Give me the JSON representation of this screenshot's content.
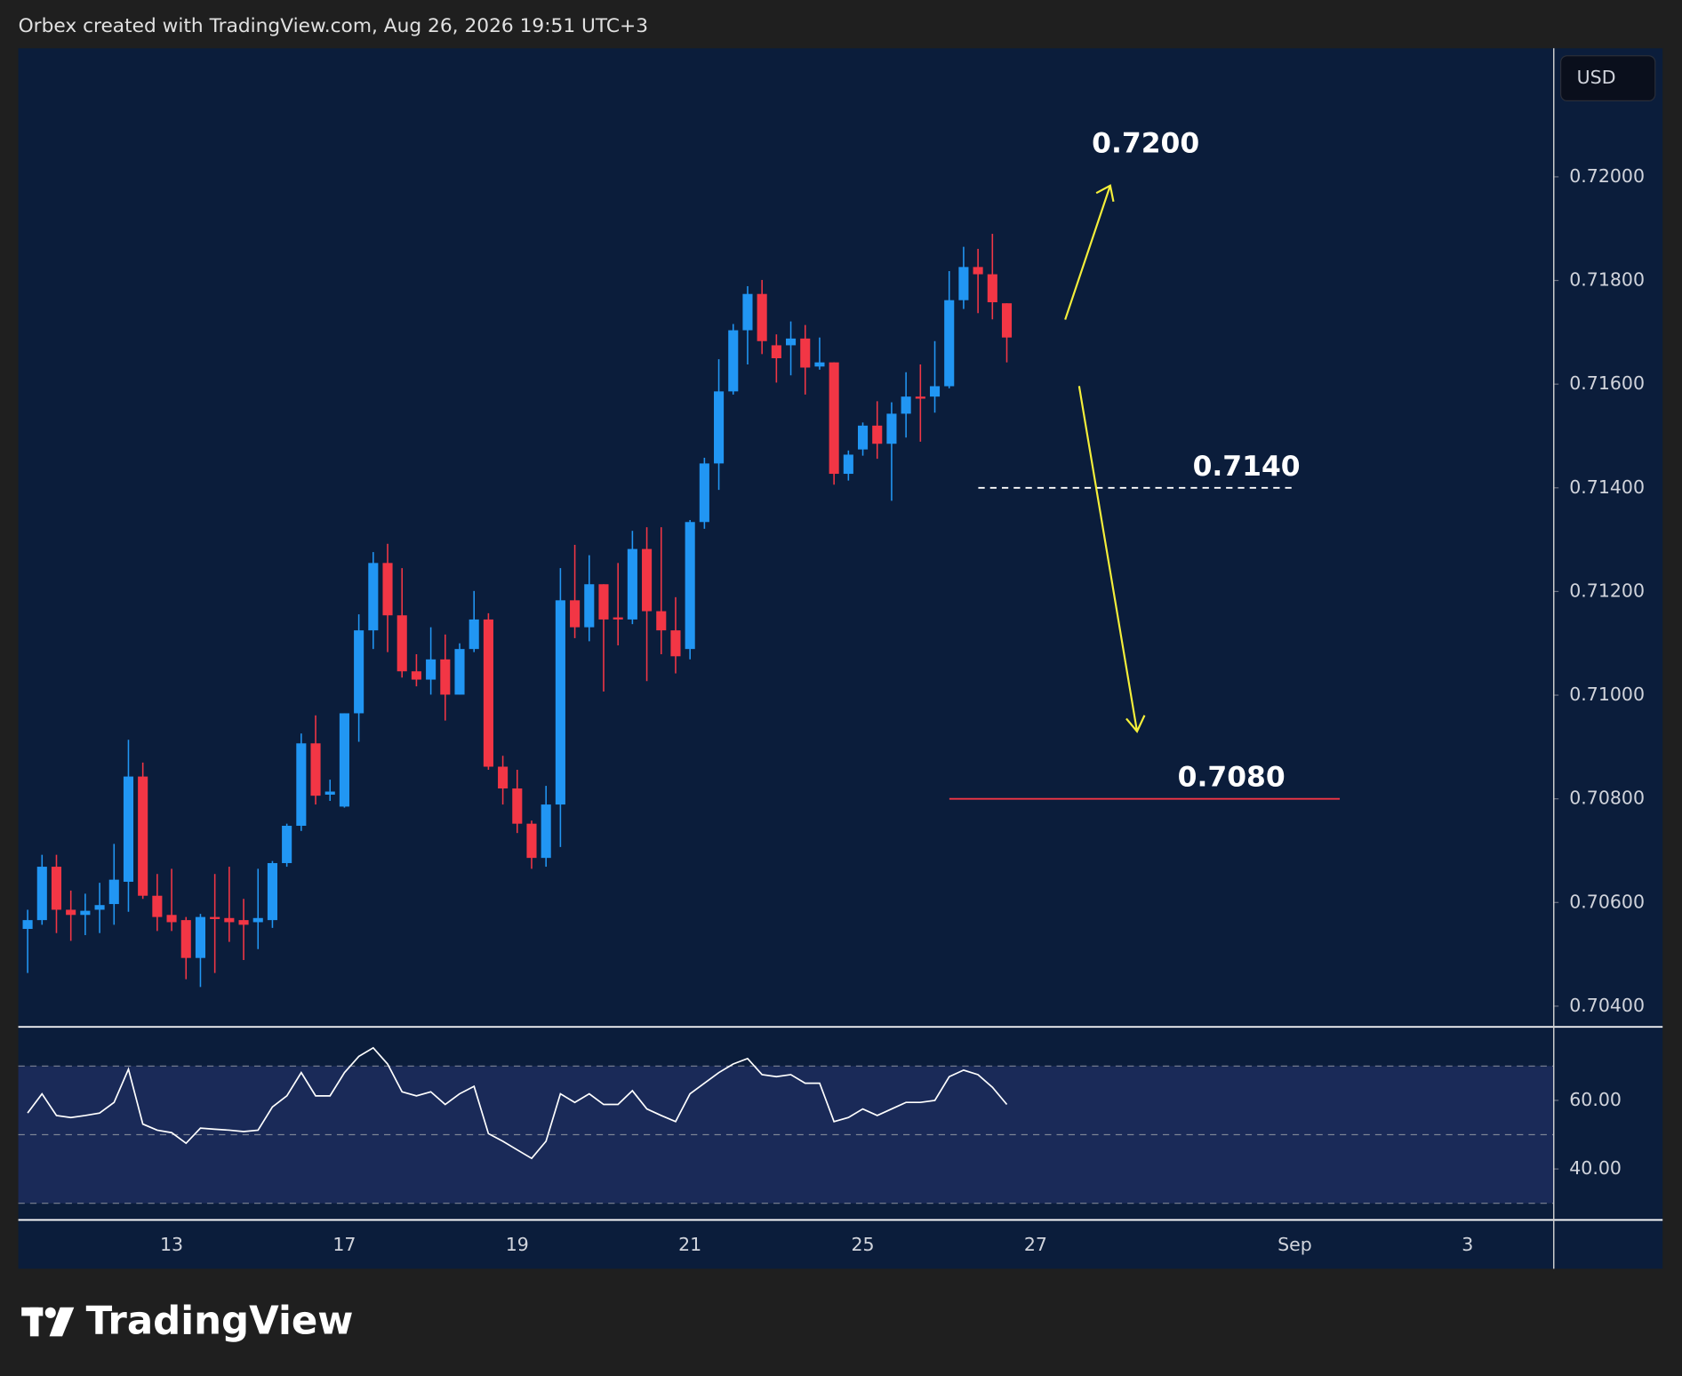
{
  "header": "Orbex created with TradingView.com, Aug 26, 2026 19:51 UTC+3",
  "currency": "USD",
  "brand": "TradingView",
  "chart_data": [
    {
      "type": "candlestick",
      "categories": [
        null,
        null,
        null,
        null,
        null,
        null,
        null,
        null,
        null,
        null,
        "13",
        null,
        null,
        null,
        null,
        null,
        null,
        null,
        null,
        null,
        null,
        null,
        "17",
        null,
        null,
        null,
        null,
        null,
        null,
        null,
        null,
        null,
        null,
        null,
        "19",
        null,
        null,
        null,
        null,
        null,
        null,
        null,
        null,
        null,
        null,
        null,
        "21",
        null,
        null,
        null,
        null,
        null,
        null,
        null,
        null,
        null,
        null,
        null,
        "25",
        null,
        null,
        null,
        null,
        null,
        null,
        null,
        null,
        null,
        null,
        null,
        "27",
        null,
        null,
        null,
        null,
        null,
        null,
        null,
        null,
        null,
        null,
        null,
        null,
        null,
        null,
        null,
        null,
        null,
        "Sep",
        null,
        null,
        null,
        null,
        null,
        null,
        null,
        null,
        null,
        null,
        null,
        "3",
        null,
        null,
        null,
        null,
        null
      ],
      "open": [
        0.70549,
        0.70566,
        0.70669,
        0.70586,
        0.70576,
        0.70586,
        0.70597,
        0.7064,
        0.70843,
        0.70613,
        0.70576,
        0.70566,
        0.70493,
        0.70572,
        0.7057,
        0.70566,
        0.70562,
        0.70566,
        0.70676,
        0.70748,
        0.70907,
        0.70808,
        0.70785,
        0.70965,
        0.71125,
        0.71255,
        0.71154,
        0.71046,
        0.7103,
        0.71069,
        0.71001,
        0.71089,
        0.71146,
        0.70862,
        0.7082,
        0.70752,
        0.70686,
        0.70789,
        0.71183,
        0.71131,
        0.71214,
        0.7115,
        0.71146,
        0.71282,
        0.71162,
        0.71125,
        0.71089,
        0.71334,
        0.71447,
        0.71586,
        0.71704,
        0.71774,
        0.71675,
        0.71675,
        0.71688,
        0.71634,
        0.71642,
        0.71427,
        0.71474,
        0.7152,
        0.71485,
        0.71543,
        0.71576,
        0.71576,
        0.71596,
        0.71762,
        0.71826,
        0.71812,
        0.71756,
        null,
        null,
        null,
        null,
        null,
        null,
        null,
        null,
        null,
        null,
        null,
        null,
        null,
        null,
        null,
        null,
        null,
        null,
        null,
        null,
        null,
        null,
        null,
        null,
        null,
        null,
        null,
        null,
        null,
        null,
        null,
        null,
        null,
        null,
        null,
        null,
        null
      ],
      "high": [
        0.70586,
        0.70692,
        0.70692,
        0.70623,
        0.70617,
        0.70638,
        0.70713,
        0.70914,
        0.7087,
        0.70655,
        0.70665,
        0.70572,
        0.70578,
        0.70655,
        0.70669,
        0.70607,
        0.70665,
        0.7068,
        0.70752,
        0.70926,
        0.70961,
        0.70837,
        0.70965,
        0.71156,
        0.71276,
        0.71292,
        0.71245,
        0.71079,
        0.71131,
        0.71117,
        0.711,
        0.71201,
        0.71158,
        0.70883,
        0.70856,
        0.70758,
        0.70825,
        0.71245,
        0.7129,
        0.7127,
        0.71214,
        0.71255,
        0.71317,
        0.71324,
        0.71324,
        0.71189,
        0.71338,
        0.71458,
        0.71648,
        0.71716,
        0.71789,
        0.71801,
        0.71696,
        0.71721,
        0.71714,
        0.7169,
        0.71642,
        0.71472,
        0.71526,
        0.71567,
        0.71565,
        0.71623,
        0.71638,
        0.71683,
        0.71818,
        0.71865,
        0.71861,
        0.7189,
        0.71756,
        null,
        null,
        null,
        null,
        null,
        null,
        null,
        null,
        null,
        null,
        null,
        null,
        null,
        null,
        null,
        null,
        null,
        null,
        null,
        null,
        null,
        null,
        null,
        null,
        null,
        null,
        null,
        null,
        null,
        null,
        null,
        null,
        null,
        null,
        null,
        null,
        null
      ],
      "low": [
        0.70464,
        0.70557,
        0.70541,
        0.70526,
        0.70537,
        0.70541,
        0.70557,
        0.70582,
        0.70607,
        0.70545,
        0.70545,
        0.70452,
        0.70437,
        0.70464,
        0.70524,
        0.70489,
        0.7051,
        0.70551,
        0.70669,
        0.70738,
        0.70789,
        0.70796,
        0.70783,
        0.7091,
        0.71089,
        0.71083,
        0.71034,
        0.71017,
        0.71001,
        0.70951,
        0.71001,
        0.71083,
        0.70856,
        0.70789,
        0.70734,
        0.70665,
        0.70669,
        0.70707,
        0.7111,
        0.71104,
        0.71007,
        0.71096,
        0.71137,
        0.71027,
        0.71079,
        0.71042,
        0.71069,
        0.71321,
        0.71396,
        0.7158,
        0.71638,
        0.71658,
        0.71603,
        0.71617,
        0.7158,
        0.71628,
        0.71406,
        0.71414,
        0.71462,
        0.71456,
        0.71375,
        0.71497,
        0.71489,
        0.71545,
        0.71592,
        0.71745,
        0.71737,
        0.71725,
        0.71642,
        null,
        null,
        null,
        null,
        null,
        null,
        null,
        null,
        null,
        null,
        null,
        null,
        null,
        null,
        null,
        null,
        null,
        null,
        null,
        null,
        null,
        null,
        null,
        null,
        null,
        null,
        null,
        null,
        null,
        null,
        null,
        null,
        null,
        null,
        null,
        null,
        null
      ],
      "close": [
        0.70566,
        0.70669,
        0.70586,
        0.70576,
        0.70584,
        0.70595,
        0.70644,
        0.70843,
        0.70613,
        0.70572,
        0.70562,
        0.70493,
        0.70572,
        0.70568,
        0.70562,
        0.70557,
        0.7057,
        0.70676,
        0.70748,
        0.70907,
        0.70806,
        0.70814,
        0.70965,
        0.71125,
        0.71255,
        0.71154,
        0.71046,
        0.7103,
        0.71069,
        0.71001,
        0.71089,
        0.71146,
        0.70862,
        0.7082,
        0.70752,
        0.70686,
        0.70789,
        0.71183,
        0.71131,
        0.71214,
        0.71146,
        0.71146,
        0.71282,
        0.71162,
        0.71125,
        0.71075,
        0.71334,
        0.71447,
        0.71586,
        0.71704,
        0.71774,
        0.71683,
        0.7165,
        0.71688,
        0.71632,
        0.71642,
        0.71427,
        0.71464,
        0.7152,
        0.71485,
        0.71543,
        0.71576,
        0.71572,
        0.71596,
        0.71762,
        0.71826,
        0.71812,
        0.71758,
        0.7169,
        null,
        null,
        null,
        null,
        null,
        null,
        null,
        null,
        null,
        null,
        null,
        null,
        null,
        null,
        null,
        null,
        null,
        null,
        null,
        null,
        null,
        null,
        null,
        null,
        null,
        null,
        null,
        null,
        null,
        null,
        null,
        null,
        null,
        null,
        null,
        null,
        null
      ],
      "up_color": "#2196f3",
      "down_color": "#f23645",
      "ylim": [
        0.70361,
        0.72248
      ],
      "yticks": [
        {
          "value": 0.704,
          "label": "0.70400"
        },
        {
          "value": 0.706,
          "label": "0.70600"
        },
        {
          "value": 0.708,
          "label": "0.70800"
        },
        {
          "value": 0.71,
          "label": "0.71000"
        },
        {
          "value": 0.712,
          "label": "0.71200"
        },
        {
          "value": 0.714,
          "label": "0.71400"
        },
        {
          "value": 0.716,
          "label": "0.71600"
        },
        {
          "value": 0.718,
          "label": "0.71800"
        },
        {
          "value": 0.72,
          "label": "0.72000"
        }
      ],
      "annotations": [
        {
          "text": "0.7200",
          "value": 0.72
        },
        {
          "text": "0.7140",
          "value": 0.714,
          "style": "dashed",
          "color": "#ffffff"
        },
        {
          "text": "0.7080",
          "value": 0.708,
          "style": "solid",
          "color": "#f23645"
        }
      ]
    },
    {
      "type": "line",
      "values": [
        56.3,
        61.9,
        55.6,
        55.0,
        55.6,
        56.3,
        59.4,
        69.1,
        53.1,
        51.3,
        50.6,
        47.5,
        51.9,
        51.6,
        51.3,
        50.9,
        51.3,
        58.1,
        61.3,
        68.1,
        61.3,
        61.3,
        68.1,
        72.8,
        75.3,
        70.6,
        62.5,
        61.3,
        62.5,
        58.8,
        61.9,
        64.1,
        50.3,
        48.1,
        45.6,
        43.1,
        48.1,
        61.9,
        59.4,
        61.9,
        58.8,
        58.8,
        62.8,
        57.5,
        55.6,
        53.8,
        61.9,
        65.0,
        68.1,
        70.6,
        72.2,
        67.5,
        66.9,
        67.5,
        65.0,
        65.0,
        53.8,
        55.0,
        57.5,
        55.6,
        57.5,
        59.4,
        59.4,
        60.0,
        66.9,
        68.8,
        67.5,
        63.8,
        58.8,
        null,
        null,
        null,
        null,
        null,
        null,
        null,
        null,
        null,
        null,
        null,
        null,
        null,
        null,
        null,
        null,
        null,
        null,
        null,
        null,
        null,
        null,
        null,
        null,
        null,
        null,
        null,
        null,
        null,
        null,
        null,
        null,
        null,
        null,
        null,
        null,
        null
      ],
      "color": "#ffffff",
      "bands": [
        70,
        50,
        30
      ],
      "band_fill": "#1a2a58",
      "ylim": [
        25.3,
        81.25
      ],
      "yticks": [
        {
          "value": 40,
          "label": "40.00"
        },
        {
          "value": 60,
          "label": "60.00"
        }
      ]
    }
  ]
}
